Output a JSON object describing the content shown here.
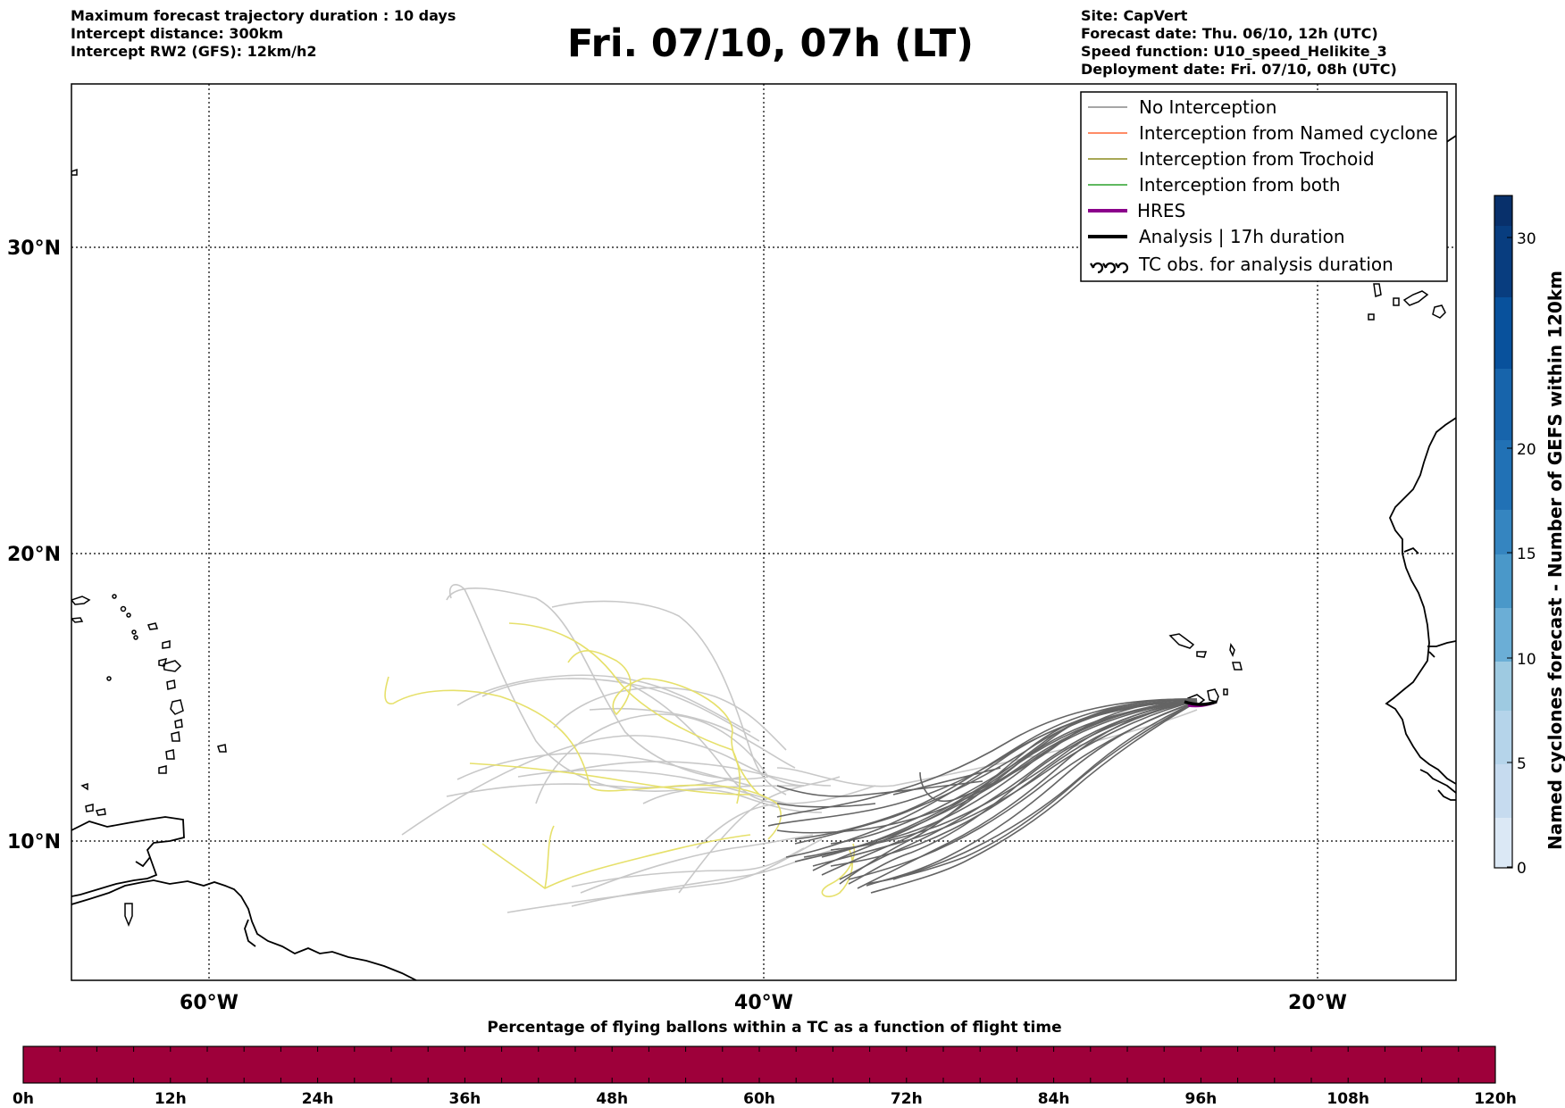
{
  "header": {
    "left_lines": [
      "Maximum forecast trajectory duration : 10 days",
      "Intercept distance: 300km",
      "Intercept RW2 (GFS):  12km/h2"
    ],
    "title": "Fri. 07/10, 07h (LT)",
    "right_lines": [
      "Site: CapVert",
      "Forecast date: Thu. 06/10, 12h (UTC)",
      "Speed function: U10_speed_Helikite_3",
      "Deployment date: Fri. 07/10, 08h (UTC)"
    ]
  },
  "map": {
    "lat_labels": [
      "30°N",
      "20°N",
      "10°N"
    ],
    "lon_labels": [
      "60°W",
      "40°W",
      "20°W"
    ],
    "colors": {
      "no_interception": "#888888",
      "named_cyclone": "#ff6633",
      "trochoid": "#8b8b1e",
      "both": "#2ca02c",
      "hres": "#8b008b",
      "analysis": "#000000",
      "trajectory_light": "#c8c8c8",
      "trajectory_yellow": "#e6e06a",
      "trajectory_dark": "#646464"
    }
  },
  "legend": {
    "items": [
      {
        "label": "No Interception",
        "color": "#888888",
        "style": "thin"
      },
      {
        "label": "Interception from Named cyclone",
        "color": "#ff6633",
        "style": "thin"
      },
      {
        "label": "Interception from Trochoid",
        "color": "#8b8b1e",
        "style": "thin"
      },
      {
        "label": "Interception from both",
        "color": "#2ca02c",
        "style": "thin"
      },
      {
        "label": "HRES",
        "color": "#8b008b",
        "style": "thick"
      },
      {
        "label": "Analysis | 17h duration",
        "color": "#000000",
        "style": "thick"
      },
      {
        "label": "TC obs. for analysis duration",
        "color": "#000000",
        "style": "tc-symbol"
      }
    ]
  },
  "right_colorbar": {
    "title": "Named cyclones forecast - Number of GEFS within 120km",
    "ticks": [
      "0",
      "5",
      "10",
      "15",
      "20",
      "30"
    ],
    "colors_low_to_high": [
      "#dbe8f5",
      "#c6dbef",
      "#9ecae1",
      "#6baed6",
      "#4292c6",
      "#2171b5",
      "#08519c",
      "#08306b"
    ]
  },
  "bottom_colorbar": {
    "title": "Percentage of flying ballons within a TC as a function of flight time",
    "ticks": [
      "0h",
      "12h",
      "24h",
      "36h",
      "48h",
      "60h",
      "72h",
      "84h",
      "96h",
      "108h",
      "120h"
    ],
    "fill_color": "#9e003a"
  }
}
